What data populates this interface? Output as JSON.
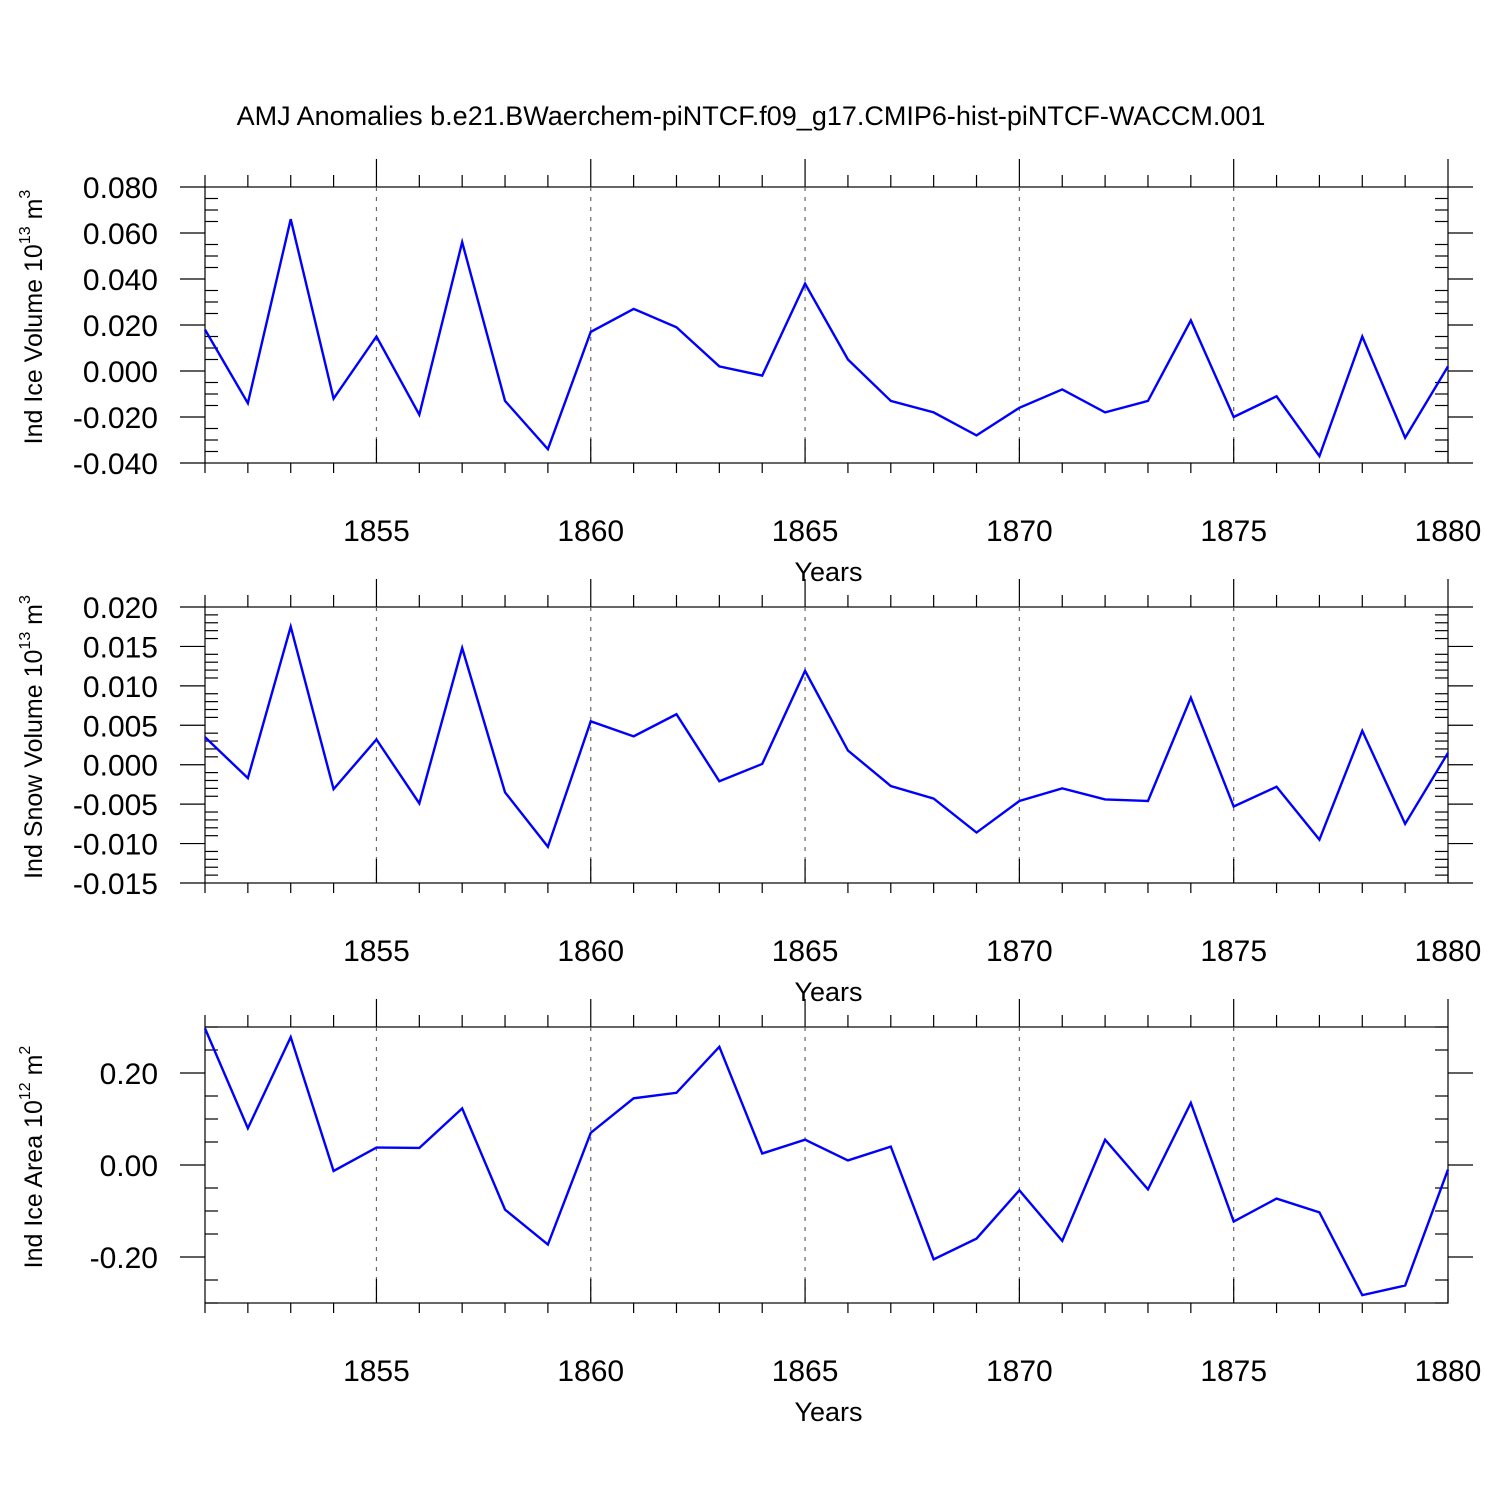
{
  "title": "AMJ Anomalies b.e21.BWaerchem-piNTCF.f09_g17.CMIP6-hist-piNTCF-WACCM.001",
  "colors": {
    "series": "#0000ff",
    "axis": "#000000",
    "grid": "#666666"
  },
  "chart_data": [
    {
      "type": "line",
      "ylabel": {
        "main": "Ind Ice Volume 10",
        "exponent": "13",
        "unit": " m",
        "unit_exponent": "3"
      },
      "xlabel": "Years",
      "xlim": [
        1851,
        1880
      ],
      "ylim": [
        -0.04,
        0.08
      ],
      "yticks": [
        -0.04,
        -0.02,
        0.0,
        0.02,
        0.04,
        0.06,
        0.08
      ],
      "ytick_labels": [
        "-0.040",
        "-0.020",
        "0.000",
        "0.020",
        "0.040",
        "0.060",
        "0.080"
      ],
      "yminor_step": 0.005,
      "xticks": [
        1855,
        1860,
        1865,
        1870,
        1875,
        1880
      ],
      "xtick_labels": [
        "1855",
        "1860",
        "1865",
        "1870",
        "1875",
        "1880"
      ],
      "x": [
        1851,
        1852,
        1853,
        1854,
        1855,
        1856,
        1857,
        1858,
        1859,
        1860,
        1861,
        1862,
        1863,
        1864,
        1865,
        1866,
        1867,
        1868,
        1869,
        1870,
        1871,
        1872,
        1873,
        1874,
        1875,
        1876,
        1877,
        1878,
        1879,
        1880
      ],
      "series": [
        {
          "name": "Ind Ice Volume",
          "values": [
            0.018,
            -0.014,
            0.066,
            -0.012,
            0.015,
            -0.019,
            0.056,
            -0.013,
            -0.034,
            0.017,
            0.027,
            0.019,
            0.002,
            -0.002,
            0.038,
            0.005,
            -0.013,
            -0.018,
            -0.028,
            -0.016,
            -0.008,
            -0.018,
            -0.013,
            0.022,
            -0.02,
            -0.011,
            -0.037,
            0.015,
            -0.029,
            0.002
          ]
        }
      ]
    },
    {
      "type": "line",
      "ylabel": {
        "main": "Ind Snow Volume 10",
        "exponent": "13",
        "unit": " m",
        "unit_exponent": "3"
      },
      "xlabel": "Years",
      "xlim": [
        1851,
        1880
      ],
      "ylim": [
        -0.015,
        0.02
      ],
      "yticks": [
        -0.015,
        -0.01,
        -0.005,
        0.0,
        0.005,
        0.01,
        0.015,
        0.02
      ],
      "ytick_labels": [
        "-0.015",
        "-0.010",
        "-0.005",
        "0.000",
        "0.005",
        "0.010",
        "0.015",
        "0.020"
      ],
      "yminor_step": 0.001,
      "xticks": [
        1855,
        1860,
        1865,
        1870,
        1875,
        1880
      ],
      "xtick_labels": [
        "1855",
        "1860",
        "1865",
        "1870",
        "1875",
        "1880"
      ],
      "x": [
        1851,
        1852,
        1853,
        1854,
        1855,
        1856,
        1857,
        1858,
        1859,
        1860,
        1861,
        1862,
        1863,
        1864,
        1865,
        1866,
        1867,
        1868,
        1869,
        1870,
        1871,
        1872,
        1873,
        1874,
        1875,
        1876,
        1877,
        1878,
        1879,
        1880
      ],
      "series": [
        {
          "name": "Ind Snow Volume",
          "values": [
            0.0035,
            -0.0017,
            0.0175,
            -0.0031,
            0.0032,
            -0.0049,
            0.0148,
            -0.0035,
            -0.0104,
            0.0055,
            0.0036,
            0.0064,
            -0.0021,
            0.0001,
            0.0119,
            0.0018,
            -0.0027,
            -0.0043,
            -0.0086,
            -0.0046,
            -0.003,
            -0.0044,
            -0.0046,
            0.0085,
            -0.0053,
            -0.0028,
            -0.0095,
            0.0043,
            -0.0075,
            0.0015
          ]
        }
      ]
    },
    {
      "type": "line",
      "ylabel": {
        "main": "Ind Ice Area 10",
        "exponent": "12",
        "unit": " m",
        "unit_exponent": "2"
      },
      "xlabel": "Years",
      "xlim": [
        1851,
        1880
      ],
      "ylim": [
        -0.3,
        0.3
      ],
      "yticks": [
        -0.2,
        0.0,
        0.2
      ],
      "ytick_labels": [
        "-0.20",
        "0.00",
        "0.20"
      ],
      "yminor_step": 0.05,
      "xticks": [
        1855,
        1860,
        1865,
        1870,
        1875,
        1880
      ],
      "xtick_labels": [
        "1855",
        "1860",
        "1865",
        "1870",
        "1875",
        "1880"
      ],
      "x": [
        1851,
        1852,
        1853,
        1854,
        1855,
        1856,
        1857,
        1858,
        1859,
        1860,
        1861,
        1862,
        1863,
        1864,
        1865,
        1866,
        1867,
        1868,
        1869,
        1870,
        1871,
        1872,
        1873,
        1874,
        1875,
        1876,
        1877,
        1878,
        1879,
        1880
      ],
      "series": [
        {
          "name": "Ind Ice Area",
          "values": [
            0.297,
            0.08,
            0.278,
            -0.013,
            0.038,
            0.037,
            0.123,
            -0.097,
            -0.173,
            0.07,
            0.145,
            0.157,
            0.257,
            0.025,
            0.055,
            0.01,
            0.04,
            -0.205,
            -0.16,
            -0.055,
            -0.165,
            0.055,
            -0.053,
            0.135,
            -0.123,
            -0.073,
            -0.103,
            -0.283,
            -0.262,
            -0.01
          ]
        }
      ]
    }
  ]
}
